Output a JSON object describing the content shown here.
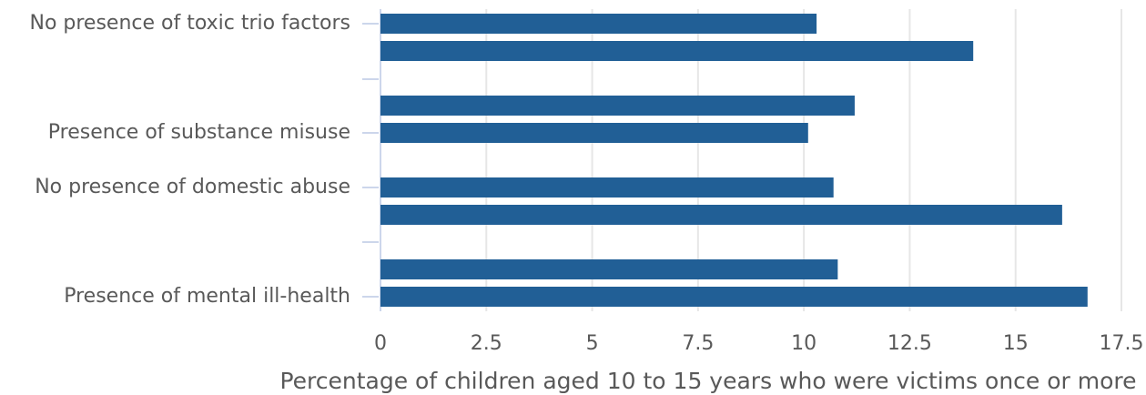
{
  "chart_data": {
    "type": "barh",
    "categories": [
      "No presence of toxic trio factors",
      null,
      null,
      "Presence of substance misuse",
      "No presence of domestic abuse",
      null,
      null,
      "Presence of mental ill-health"
    ],
    "values": [
      10.3,
      14.0,
      11.2,
      10.1,
      10.7,
      16.1,
      10.8,
      16.7
    ],
    "color": "#215f96",
    "xlabel": "Percentage of children aged 10 to 15 years who were victims once or more",
    "xlim": [
      0,
      17.5
    ],
    "xticks": [
      0,
      2.5,
      5,
      7.5,
      10,
      12.5,
      15,
      17.5
    ],
    "grid": true
  }
}
